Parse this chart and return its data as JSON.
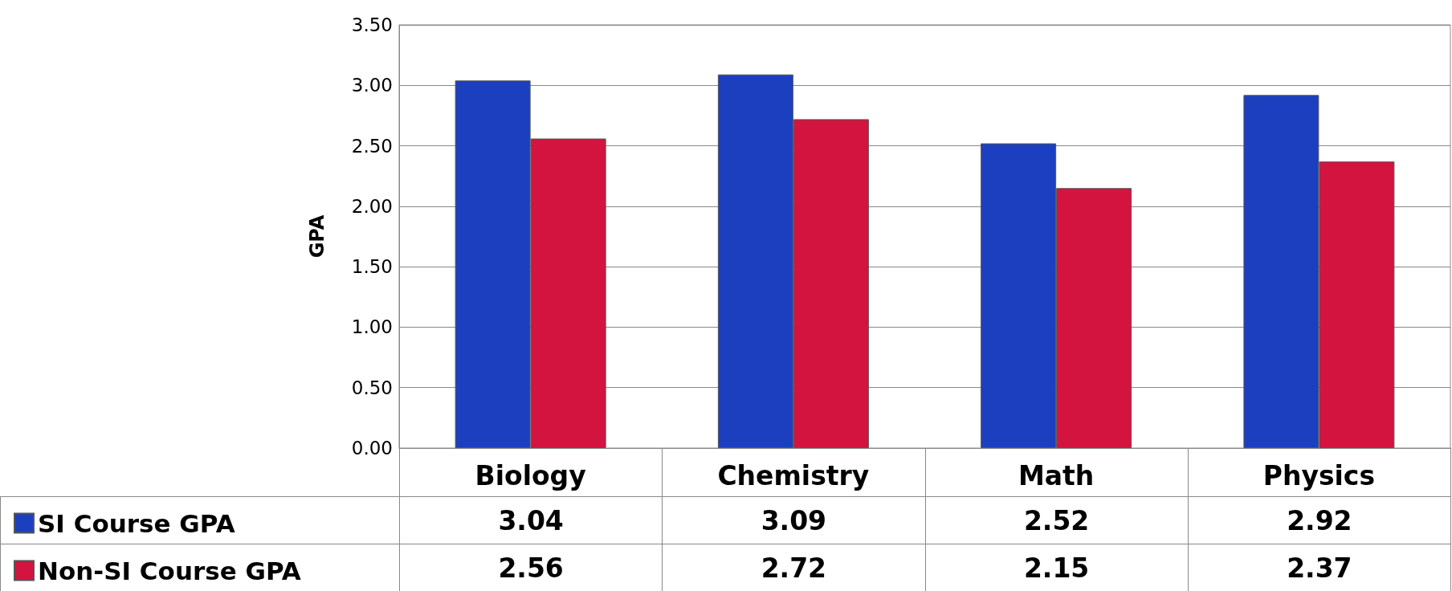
{
  "chart_data": {
    "type": "bar",
    "ylabel": "GPA",
    "categories": [
      "Biology",
      "Chemistry",
      "Math",
      "Physics"
    ],
    "series": [
      {
        "name": "SI Course GPA",
        "color": "#1c3fc0",
        "values": [
          3.04,
          3.09,
          2.52,
          2.92
        ]
      },
      {
        "name": "Non-SI Course GPA",
        "color": "#d3143f",
        "values": [
          2.56,
          2.72,
          2.15,
          2.37
        ]
      }
    ],
    "ylim": [
      0,
      3.5
    ],
    "yticks": [
      {
        "value": 0,
        "label": "0.00"
      },
      {
        "value": 0.5,
        "label": "0.50"
      },
      {
        "value": 1,
        "label": "1.00"
      },
      {
        "value": 1.5,
        "label": "1.50"
      },
      {
        "value": 2,
        "label": "2.00"
      },
      {
        "value": 2.5,
        "label": "2.50"
      },
      {
        "value": 3,
        "label": "3.00"
      },
      {
        "value": 3.5,
        "label": "3.50"
      }
    ],
    "grid": "y",
    "legend": "bottom left",
    "data_labels": true
  }
}
